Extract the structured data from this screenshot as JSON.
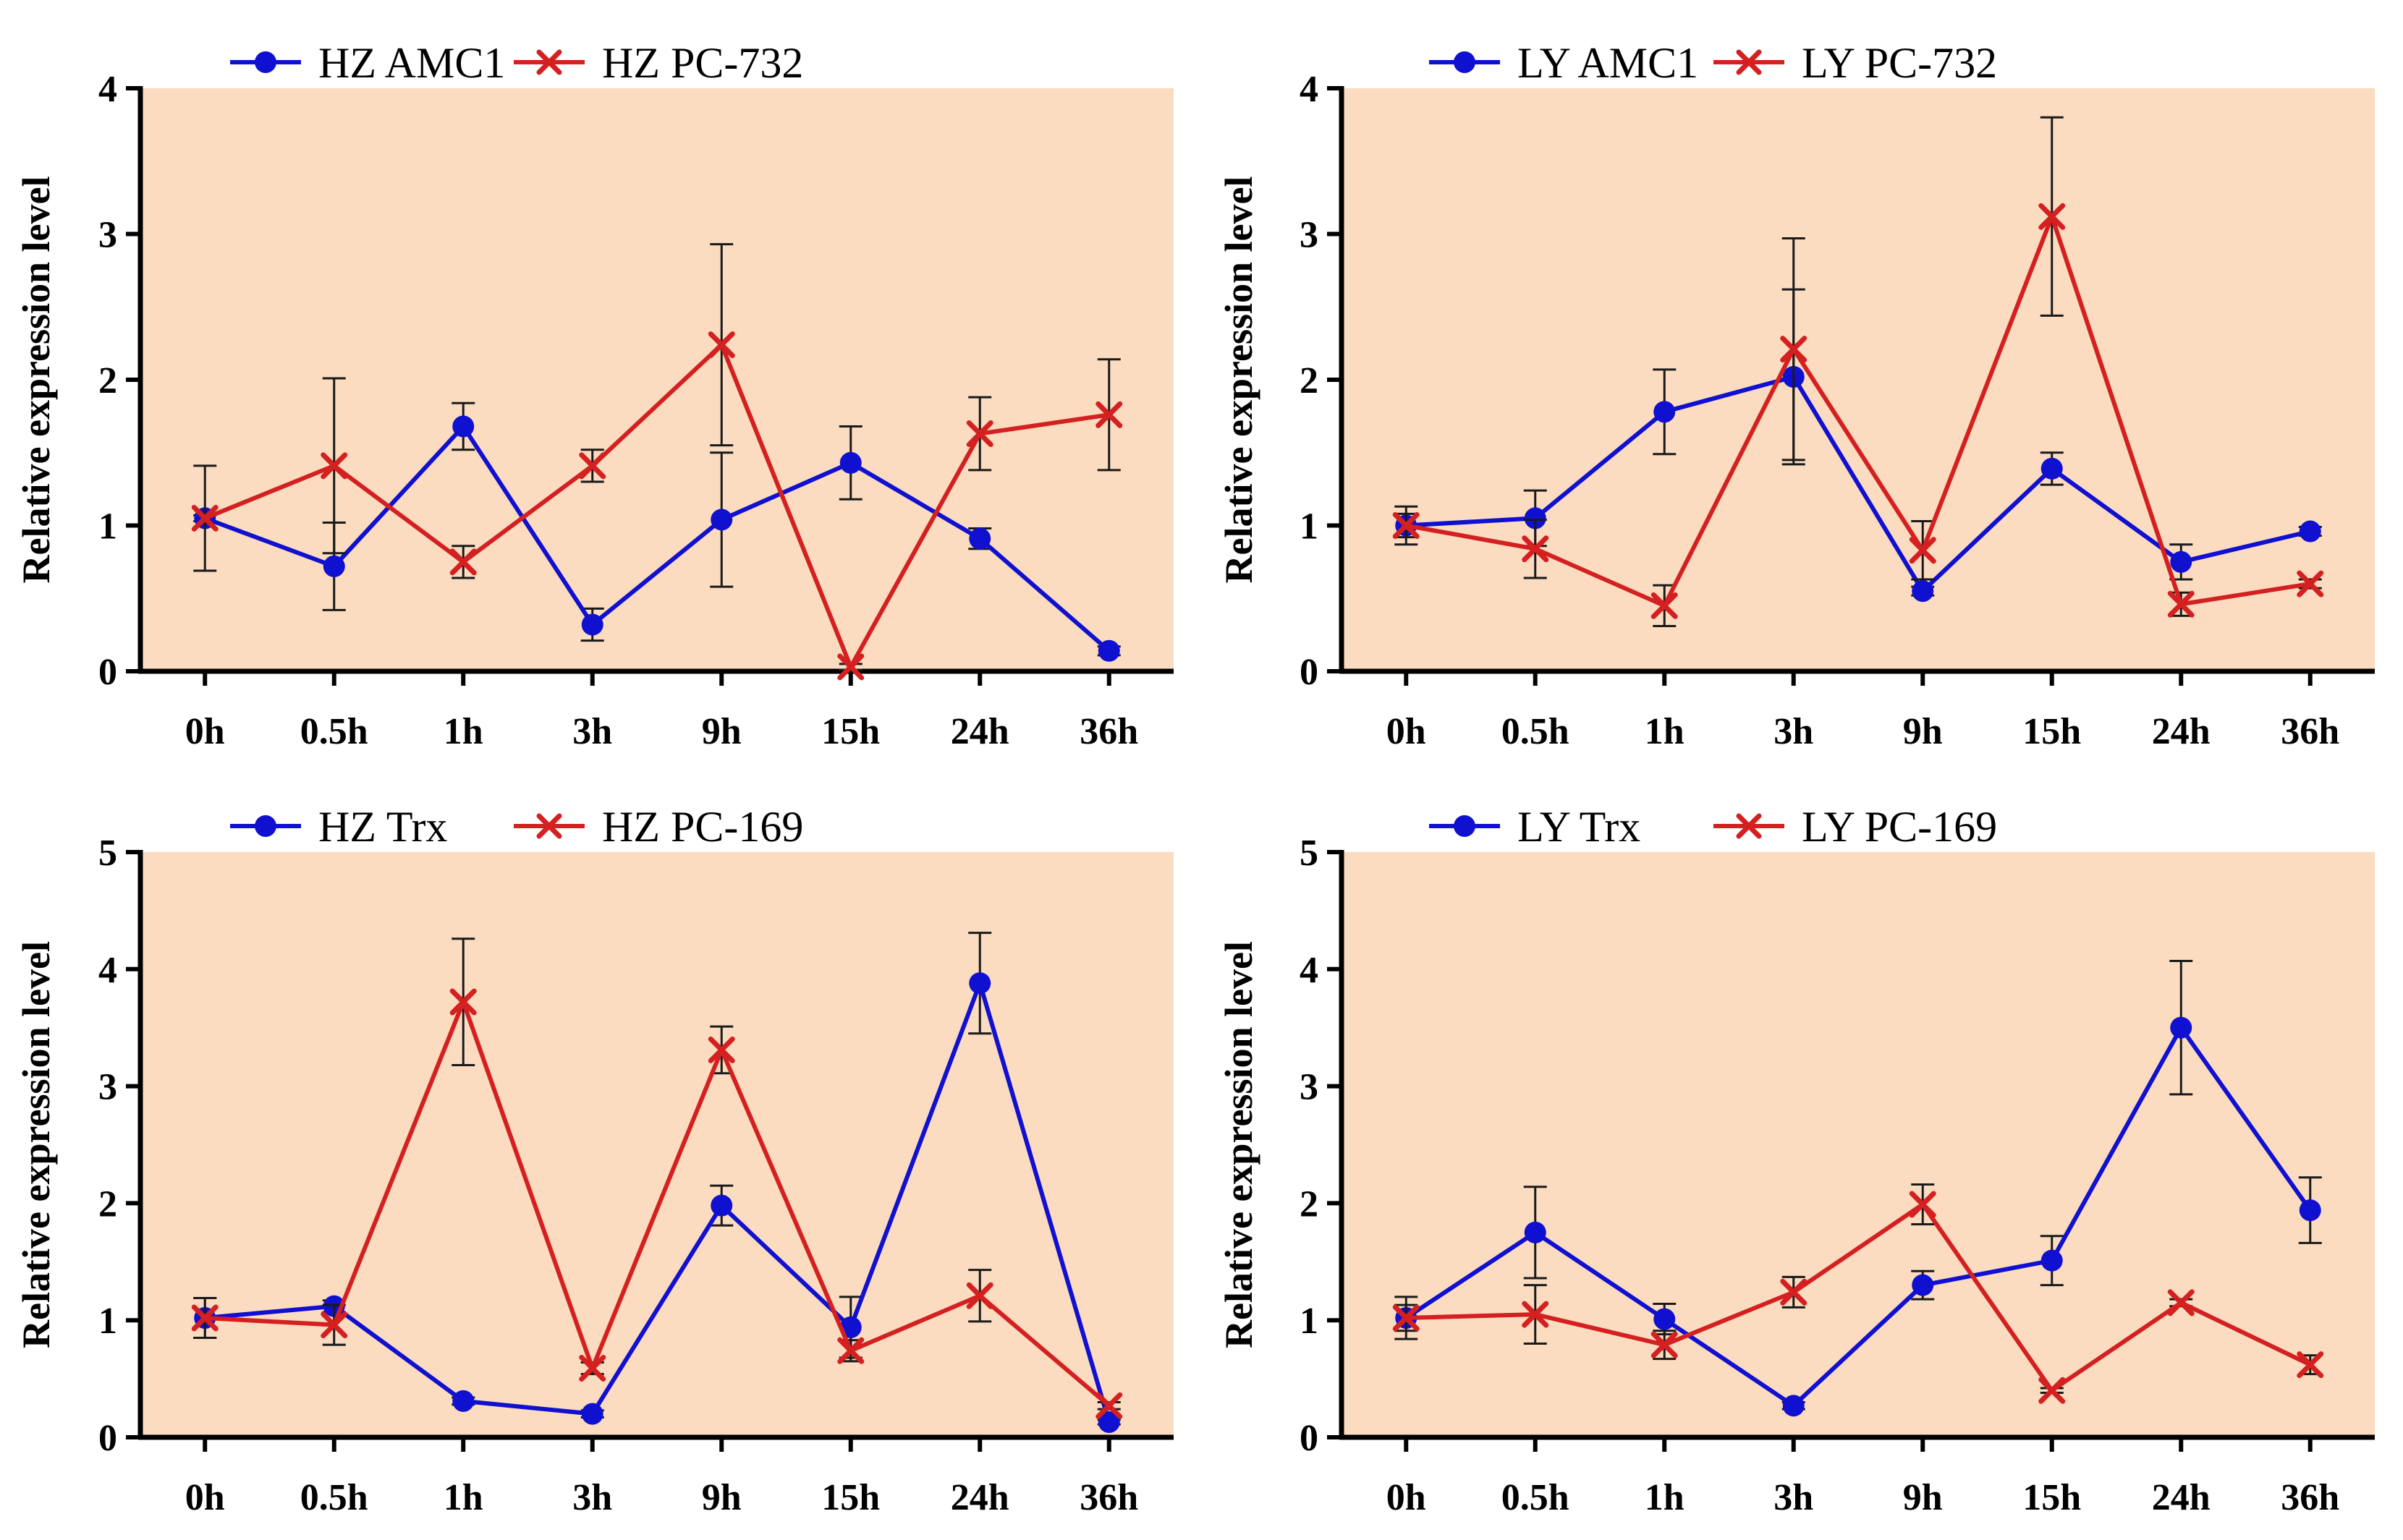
{
  "chart_data": [
    {
      "type": "line",
      "title": "",
      "xlabel": "",
      "ylabel": "Relative expression level",
      "categories": [
        "0h",
        "0.5h",
        "1h",
        "3h",
        "9h",
        "15h",
        "24h",
        "36h"
      ],
      "ylim": [
        0,
        4
      ],
      "yticks": [
        0,
        1,
        2,
        3,
        4
      ],
      "legend_position": "top",
      "series": [
        {
          "name": "HZ AMC1",
          "color": "#1010d0",
          "marker": "circle",
          "values": [
            1.05,
            0.72,
            1.68,
            0.32,
            1.04,
            1.43,
            0.91,
            0.14
          ],
          "errors": [
            0.02,
            0.3,
            0.16,
            0.11,
            0.46,
            0.25,
            0.07,
            0.03
          ]
        },
        {
          "name": "HZ PC-732",
          "color": "#d42020",
          "marker": "x",
          "values": [
            1.05,
            1.41,
            0.75,
            1.41,
            2.24,
            0.03,
            1.63,
            1.76
          ],
          "errors": [
            0.36,
            0.6,
            0.11,
            0.11,
            0.69,
            0.02,
            0.25,
            0.38
          ]
        }
      ]
    },
    {
      "type": "line",
      "title": "",
      "xlabel": "",
      "ylabel": "Relative expression level",
      "categories": [
        "0h",
        "0.5h",
        "1h",
        "3h",
        "9h",
        "15h",
        "24h",
        "36h"
      ],
      "ylim": [
        0,
        4
      ],
      "yticks": [
        0,
        1,
        2,
        3,
        4
      ],
      "legend_position": "top",
      "series": [
        {
          "name": "LY AMC1",
          "color": "#1010d0",
          "marker": "circle",
          "values": [
            1.0,
            1.05,
            1.78,
            2.02,
            0.55,
            1.39,
            0.75,
            0.96
          ],
          "errors": [
            0.13,
            0.19,
            0.29,
            0.6,
            0.03,
            0.11,
            0.12,
            0.03
          ]
        },
        {
          "name": "LY PC-732",
          "color": "#d42020",
          "marker": "x",
          "values": [
            1.0,
            0.84,
            0.45,
            2.21,
            0.83,
            3.12,
            0.46,
            0.6
          ],
          "errors": [
            0.08,
            0.2,
            0.14,
            0.76,
            0.2,
            0.68,
            0.08,
            0.03
          ]
        }
      ]
    },
    {
      "type": "line",
      "title": "",
      "xlabel": "",
      "ylabel": "Relative expression level",
      "categories": [
        "0h",
        "0.5h",
        "1h",
        "3h",
        "9h",
        "15h",
        "24h",
        "36h"
      ],
      "ylim": [
        0,
        5
      ],
      "yticks": [
        0,
        1,
        2,
        3,
        4,
        5
      ],
      "legend_position": "top",
      "series": [
        {
          "name": "HZ Trx",
          "color": "#1010d0",
          "marker": "circle",
          "values": [
            1.02,
            1.12,
            0.31,
            0.2,
            1.98,
            0.94,
            3.88,
            0.13
          ],
          "errors": [
            0.17,
            0.05,
            0.03,
            0.03,
            0.17,
            0.26,
            0.43,
            0.02
          ]
        },
        {
          "name": "HZ PC-169",
          "color": "#d42020",
          "marker": "x",
          "values": [
            1.02,
            0.96,
            3.72,
            0.59,
            3.31,
            0.74,
            1.21,
            0.27
          ],
          "errors": [
            0.17,
            0.17,
            0.54,
            0.05,
            0.2,
            0.09,
            0.22,
            0.03
          ]
        }
      ]
    },
    {
      "type": "line",
      "title": "",
      "xlabel": "",
      "ylabel": "Relative expression level",
      "categories": [
        "0h",
        "0.5h",
        "1h",
        "3h",
        "9h",
        "15h",
        "24h",
        "36h"
      ],
      "ylim": [
        0,
        5
      ],
      "yticks": [
        0,
        1,
        2,
        3,
        4,
        5
      ],
      "legend_position": "top",
      "series": [
        {
          "name": "LY Trx",
          "color": "#1010d0",
          "marker": "circle",
          "values": [
            1.02,
            1.75,
            1.01,
            0.27,
            1.3,
            1.51,
            3.5,
            1.94
          ],
          "errors": [
            0.18,
            0.39,
            0.13,
            0.03,
            0.12,
            0.21,
            0.57,
            0.28
          ]
        },
        {
          "name": "LY PC-169",
          "color": "#d42020",
          "marker": "x",
          "values": [
            1.02,
            1.05,
            0.79,
            1.24,
            1.99,
            0.4,
            1.15,
            0.62
          ],
          "errors": [
            0.11,
            0.25,
            0.12,
            0.13,
            0.17,
            0.02,
            0.03,
            0.08
          ]
        }
      ]
    }
  ],
  "style": {
    "plot_background": "#fbdcc0",
    "axis_color": "#000000",
    "errorbar_color": "#1a1a1a"
  }
}
